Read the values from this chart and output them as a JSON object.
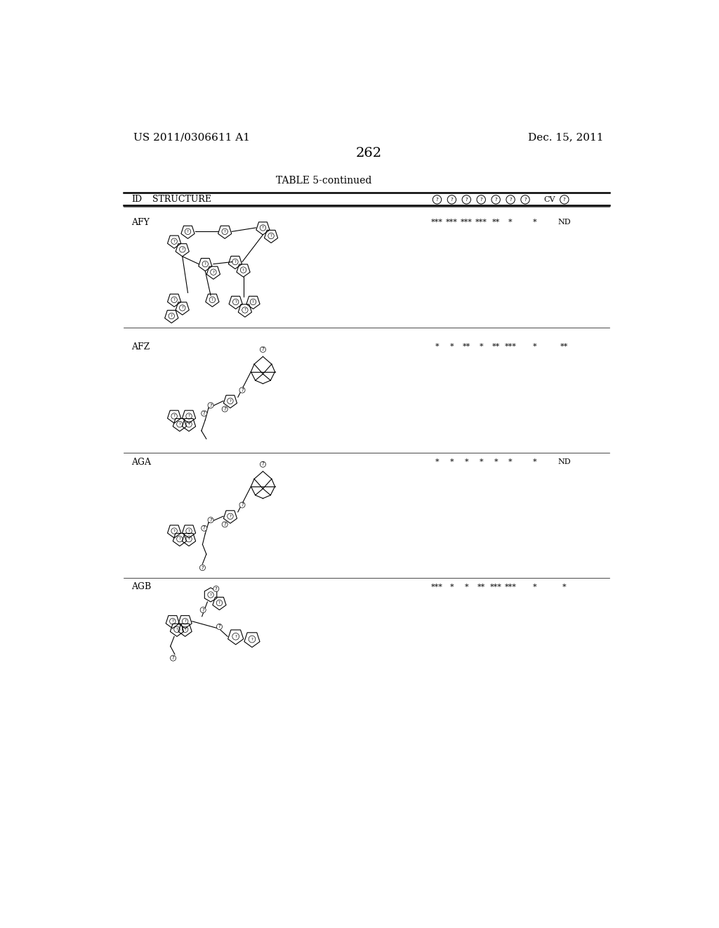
{
  "page_number": "262",
  "patent_number": "US 2011/0306611 A1",
  "patent_date": "Dec. 15, 2011",
  "table_title": "TABLE 5-continued",
  "rows": [
    {
      "id": "AFY",
      "data": [
        "***",
        "***",
        "***",
        "***",
        "**",
        "*",
        "*",
        "ND"
      ]
    },
    {
      "id": "AFZ",
      "data": [
        "*",
        "*",
        "**",
        "*",
        "**",
        "***",
        "*",
        "**"
      ]
    },
    {
      "id": "AGA",
      "data": [
        "*",
        "*",
        "*",
        "*",
        "*",
        "*",
        "*",
        "ND"
      ]
    },
    {
      "id": "AGB",
      "data": [
        "***",
        "*",
        "*",
        "**",
        "***",
        "***",
        "*",
        "*"
      ]
    }
  ],
  "bg_color": "#ffffff",
  "text_color": "#000000"
}
